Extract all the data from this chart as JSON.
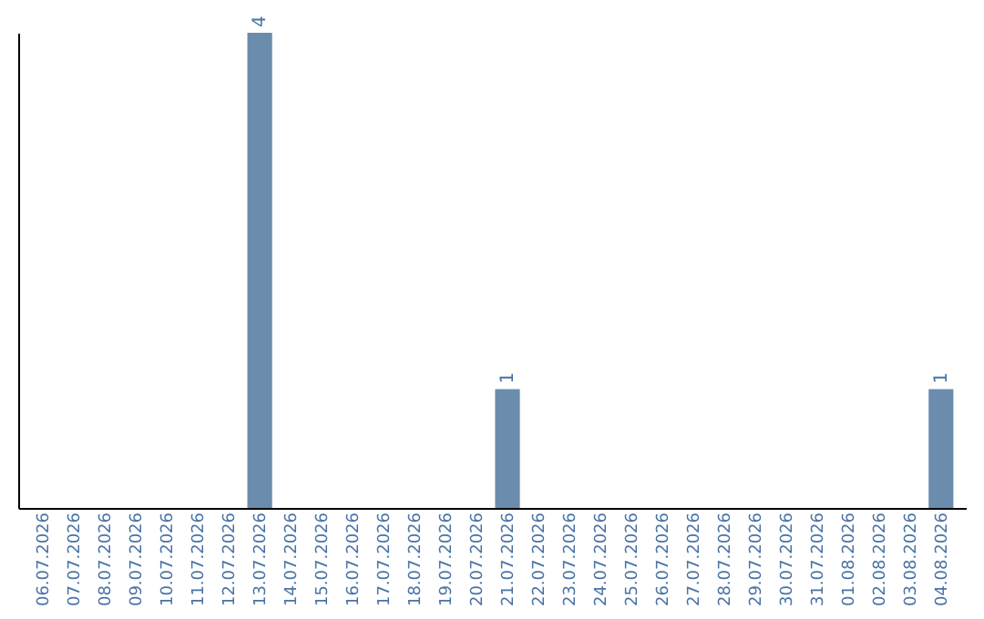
{
  "chart_data": {
    "type": "bar",
    "categories": [
      "06.07.2026",
      "07.07.2026",
      "08.07.2026",
      "09.07.2026",
      "10.07.2026",
      "11.07.2026",
      "12.07.2026",
      "13.07.2026",
      "14.07.2026",
      "15.07.2026",
      "16.07.2026",
      "17.07.2026",
      "18.07.2026",
      "19.07.2026",
      "20.07.2026",
      "21.07.2026",
      "22.07.2026",
      "23.07.2026",
      "24.07.2026",
      "25.07.2026",
      "26.07.2026",
      "27.07.2026",
      "28.07.2026",
      "29.07.2026",
      "30.07.2026",
      "31.07.2026",
      "01.08.2026",
      "02.08.2026",
      "03.08.2026",
      "04.08.2026"
    ],
    "values": [
      0,
      0,
      0,
      0,
      0,
      0,
      0,
      4,
      0,
      0,
      0,
      0,
      0,
      0,
      0,
      1,
      0,
      0,
      0,
      0,
      0,
      0,
      0,
      0,
      0,
      0,
      0,
      0,
      0,
      1
    ],
    "value_labels": [
      null,
      null,
      null,
      null,
      null,
      null,
      null,
      "4",
      null,
      null,
      null,
      null,
      null,
      null,
      null,
      "1",
      null,
      null,
      null,
      null,
      null,
      null,
      null,
      null,
      null,
      null,
      null,
      null,
      null,
      "1"
    ],
    "color": "#6b8cac",
    "tick_labels": "x",
    "grid": false
  }
}
